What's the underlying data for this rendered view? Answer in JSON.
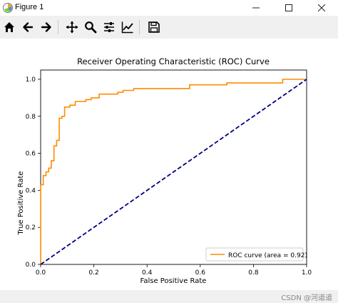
{
  "window": {
    "title": "Figure 1",
    "icons": {
      "app": "matplotlib-figure-icon",
      "minimize": "minimize-icon",
      "maximize": "maximize-icon",
      "close": "close-icon"
    }
  },
  "toolbar": {
    "buttons": [
      {
        "name": "home-icon"
      },
      {
        "name": "back-arrow-icon"
      },
      {
        "name": "forward-arrow-icon"
      },
      {
        "name": "pan-icon"
      },
      {
        "name": "zoom-icon"
      },
      {
        "name": "configure-subplots-icon"
      },
      {
        "name": "edit-axis-icon"
      },
      {
        "name": "save-icon"
      }
    ]
  },
  "watermark": "CSDN @河道道",
  "chart_data": {
    "type": "line",
    "title": "Receiver Operating Characteristic (ROC) Curve",
    "xlabel": "False Positive Rate",
    "ylabel": "True Positive Rate",
    "xlim": [
      0.0,
      1.0
    ],
    "ylim": [
      0.0,
      1.05
    ],
    "xticks": [
      "0.0",
      "0.2",
      "0.4",
      "0.6",
      "0.8",
      "1.0"
    ],
    "yticks": [
      "0.0",
      "0.2",
      "0.4",
      "0.6",
      "0.8",
      "1.0"
    ],
    "legend_position": "lower-right",
    "grid": false,
    "series": [
      {
        "name": "ROC curve (area = 0.92)",
        "color": "#ff8c00",
        "style": "solid",
        "step": true,
        "x": [
          0.0,
          0.0,
          0.01,
          0.01,
          0.02,
          0.02,
          0.03,
          0.03,
          0.04,
          0.04,
          0.05,
          0.05,
          0.06,
          0.06,
          0.07,
          0.07,
          0.08,
          0.08,
          0.09,
          0.09,
          0.11,
          0.11,
          0.13,
          0.13,
          0.17,
          0.17,
          0.19,
          0.19,
          0.22,
          0.22,
          0.29,
          0.29,
          0.31,
          0.31,
          0.35,
          0.35,
          0.56,
          0.56,
          0.7,
          0.7,
          0.91,
          0.91,
          1.0,
          1.0
        ],
        "y": [
          0.0,
          0.43,
          0.43,
          0.48,
          0.48,
          0.5,
          0.5,
          0.52,
          0.52,
          0.56,
          0.56,
          0.64,
          0.64,
          0.67,
          0.67,
          0.79,
          0.79,
          0.8,
          0.8,
          0.85,
          0.85,
          0.86,
          0.86,
          0.88,
          0.88,
          0.89,
          0.89,
          0.9,
          0.9,
          0.92,
          0.92,
          0.93,
          0.93,
          0.94,
          0.94,
          0.95,
          0.95,
          0.97,
          0.97,
          0.98,
          0.98,
          1.0,
          1.0,
          1.0
        ]
      },
      {
        "name": "",
        "color": "#000080",
        "style": "dashed",
        "x": [
          0.0,
          1.0
        ],
        "y": [
          0.0,
          1.0
        ]
      }
    ]
  }
}
